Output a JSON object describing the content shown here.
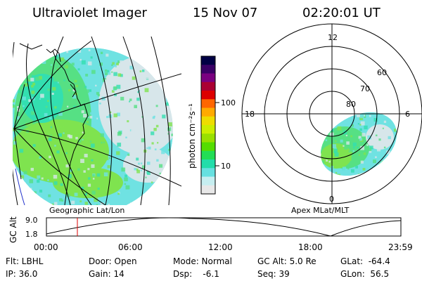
{
  "header": {
    "instrument": "Ultraviolet Imager",
    "date": "15 Nov 07",
    "time": "02:20:01 UT"
  },
  "left_panel": {
    "caption": "Geographic Lat/Lon",
    "coast_color": "#000000",
    "aurora_colors": [
      "#7fe34f",
      "#56e084",
      "#33dfb0",
      "#6fe2e2",
      "#d7e6ea"
    ]
  },
  "colorbar": {
    "unit_label": "photon cm⁻²s⁻¹",
    "ticks": [
      "100",
      "10"
    ],
    "colors": [
      "#000044",
      "#3a0066",
      "#7a0080",
      "#aa0033",
      "#dd0000",
      "#ff6600",
      "#ffaa00",
      "#eedd00",
      "#ccee00",
      "#99e000",
      "#55dd00",
      "#22dd55",
      "#22ddaa",
      "#66e0e0",
      "#c6eef0",
      "#e8e8e8"
    ]
  },
  "right_panel": {
    "caption": "Apex MLat/MLT",
    "mlt_labels": {
      "top": "12",
      "left": "18",
      "right": "6",
      "bottom": "0"
    },
    "lat_labels": [
      "60",
      "70",
      "80"
    ]
  },
  "altitude_plot": {
    "ylabel": "GC Alt",
    "y_ticks": [
      "9.0",
      "1.8"
    ],
    "x_ticks": [
      "00:00",
      "06:00",
      "12:00",
      "18:00",
      "23:59"
    ],
    "marker_color": "#dd0000"
  },
  "status": {
    "flt": "Flt: LBHL",
    "ip": "IP: 36.0",
    "door": "Door: Open",
    "gain": "Gain: 14",
    "mode": "Mode: Normal",
    "dsp": "Dsp:    -6.1",
    "gcalt": "GC Alt: 5.0 Re",
    "seq": "Seq: 39",
    "glat": "GLat:  -64.4",
    "glon": "GLon:  56.5"
  }
}
